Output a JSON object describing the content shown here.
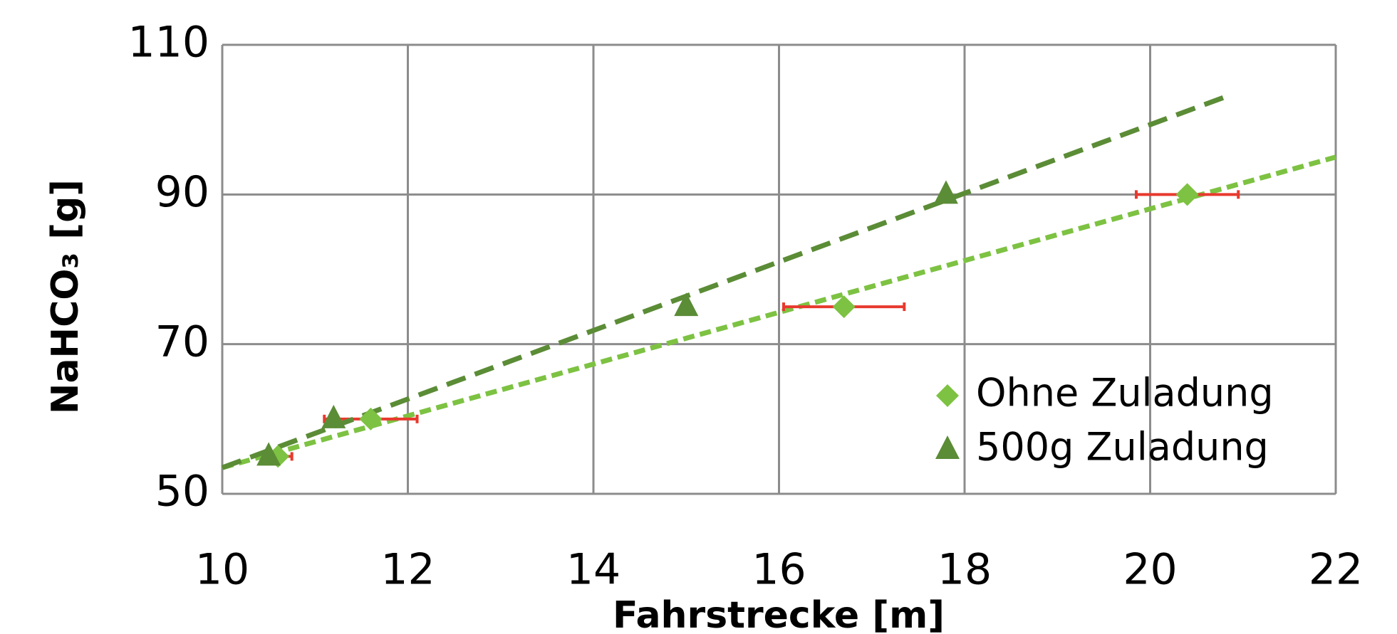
{
  "chart_data": {
    "type": "scatter",
    "x_label": "Fahrstrecke [m]",
    "y_label": "NaHCO₃ [g]",
    "xlim": [
      10,
      22
    ],
    "xticks": [
      10,
      12,
      14,
      16,
      18,
      20,
      22
    ],
    "ylim": [
      50,
      110
    ],
    "yticks": [
      50,
      70,
      90,
      110
    ],
    "grid": true,
    "legend": "lower right",
    "series": [
      {
        "name": "Ohne Zuladung",
        "color": "#7dc242",
        "marker": "diamond",
        "x": [
          10.6,
          11.6,
          16.7,
          20.4
        ],
        "values": [
          55,
          60,
          75,
          90
        ],
        "xerr": [
          0.15,
          0.5,
          0.65,
          0.55
        ],
        "error_color": "#e8392e",
        "trendline": {
          "x": [
            10,
            22
          ],
          "y": [
            53.5,
            95
          ]
        }
      },
      {
        "name": "500g Zuladung",
        "color": "#5b8c36",
        "marker": "triangle",
        "x": [
          10.5,
          11.2,
          15,
          17.8
        ],
        "values": [
          55,
          60,
          75,
          90
        ],
        "trendline": {
          "x": [
            10,
            20.8
          ],
          "y": [
            53.5,
            103
          ]
        }
      }
    ]
  }
}
